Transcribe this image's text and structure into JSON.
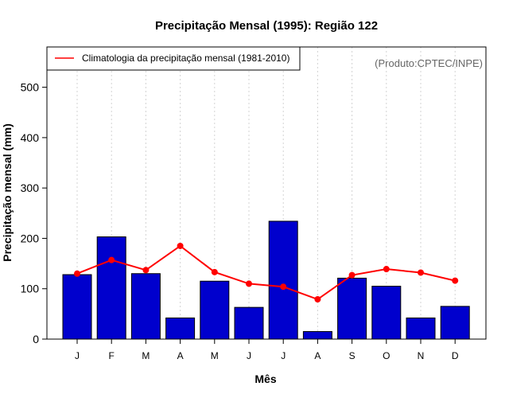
{
  "chart_data": {
    "type": "bar",
    "title": "Precipitação Mensal (1995): Região 122",
    "xlabel": "Mês",
    "ylabel": "Precipitação mensal (mm)",
    "categories": [
      "J",
      "F",
      "M",
      "A",
      "M",
      "J",
      "J",
      "A",
      "S",
      "O",
      "N",
      "D"
    ],
    "ylim": [
      0,
      580
    ],
    "yticks": [
      0,
      100,
      200,
      300,
      400,
      500
    ],
    "grid": "vertical dotted",
    "series": [
      {
        "name": "Precipitação mensal (1995)",
        "type": "bar",
        "color": "#0000cd",
        "values": [
          128,
          203,
          130,
          42,
          115,
          63,
          234,
          15,
          121,
          105,
          42,
          65
        ]
      },
      {
        "name": "Climatologia da precipitação mensal (1981-2010)",
        "type": "line",
        "color": "#ff0000",
        "values": [
          130,
          157,
          137,
          185,
          133,
          110,
          104,
          79,
          127,
          139,
          132,
          116
        ]
      }
    ],
    "legend": {
      "position": "top-left",
      "label": "Climatologia da precipitação mensal (1981-2010)"
    },
    "credit": "(Produto:CPTEC/INPE)"
  }
}
